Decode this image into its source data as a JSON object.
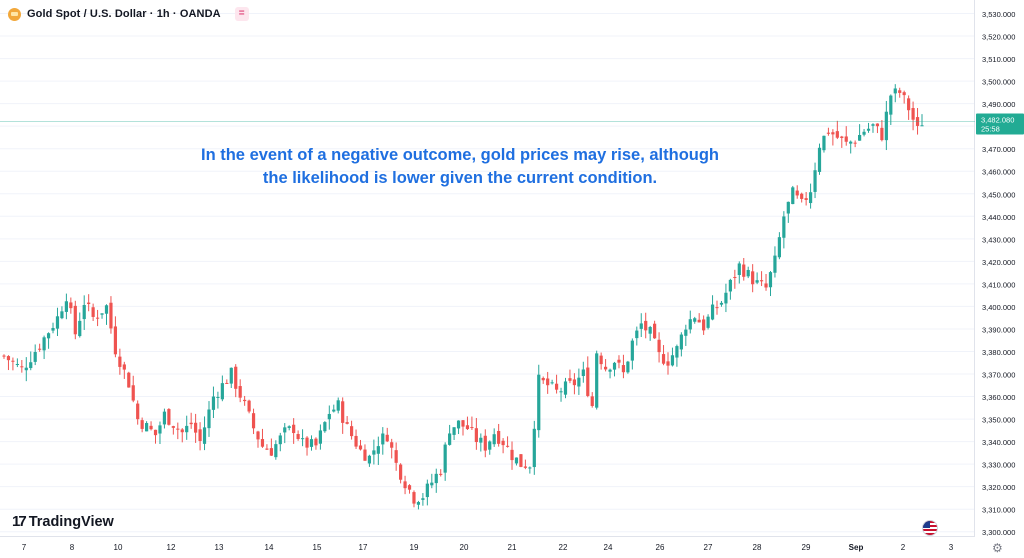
{
  "header": {
    "symbol_title": "Gold Spot / U.S. Dollar · 1h · OANDA",
    "flag_glyph": "="
  },
  "annotation": {
    "line1": "In the event of a negative outcome, gold prices may rise, although",
    "line2": "the likelihood is lower given the current condition."
  },
  "branding": {
    "logo_mark": "17",
    "logo_text": "TradingView"
  },
  "price_label": {
    "price": "3,482.080",
    "countdown": "25:58"
  },
  "colors": {
    "up": "#26a69a",
    "down": "#ef5350",
    "label_bg": "#22ab94",
    "axis_text": "#131722",
    "annotation": "#1f6fe0"
  },
  "chart_data": {
    "type": "candlestick",
    "title": "Gold Spot / U.S. Dollar · 1h · OANDA",
    "ylim": [
      3295,
      3532
    ],
    "y_ticks": [
      "3,530.000",
      "3,520.000",
      "3,510.000",
      "3,500.000",
      "3,490.000",
      "3,480.000",
      "3,470.000",
      "3,460.000",
      "3,450.000",
      "3,440.000",
      "3,430.000",
      "3,420.000",
      "3,410.000",
      "3,400.000",
      "3,390.000",
      "3,380.000",
      "3,370.000",
      "3,360.000",
      "3,350.000",
      "3,340.000",
      "3,330.000",
      "3,320.000",
      "3,310.000",
      "3,300.000"
    ],
    "x_ticks": [
      "7",
      "8",
      "10",
      "12",
      "13",
      "14",
      "15",
      "17",
      "19",
      "20",
      "21",
      "22",
      "24",
      "26",
      "27",
      "28",
      "29",
      "Sep",
      "2",
      "3"
    ],
    "last_price": 3482.08,
    "price_path": [
      [
        0,
        3378
      ],
      [
        4,
        3372
      ],
      [
        8,
        3383
      ],
      [
        12,
        3395
      ],
      [
        14,
        3405
      ],
      [
        16,
        3388
      ],
      [
        18,
        3402
      ],
      [
        20,
        3395
      ],
      [
        23,
        3400
      ],
      [
        25,
        3381
      ],
      [
        28,
        3366
      ],
      [
        30,
        3350
      ],
      [
        34,
        3343
      ],
      [
        36,
        3352
      ],
      [
        40,
        3344
      ],
      [
        42,
        3348
      ],
      [
        44,
        3340
      ],
      [
        47,
        3360
      ],
      [
        49,
        3365
      ],
      [
        51,
        3370
      ],
      [
        54,
        3356
      ],
      [
        56,
        3346
      ],
      [
        58,
        3338
      ],
      [
        60,
        3336
      ],
      [
        63,
        3344
      ],
      [
        65,
        3346
      ],
      [
        67,
        3339
      ],
      [
        70,
        3338
      ],
      [
        73,
        3353
      ],
      [
        75,
        3356
      ],
      [
        77,
        3346
      ],
      [
        80,
        3336
      ],
      [
        82,
        3333
      ],
      [
        84,
        3340
      ],
      [
        86,
        3343
      ],
      [
        88,
        3330
      ],
      [
        90,
        3322
      ],
      [
        92,
        3315
      ],
      [
        94,
        3316
      ],
      [
        96,
        3322
      ],
      [
        98,
        3328
      ],
      [
        100,
        3346
      ],
      [
        102,
        3348
      ],
      [
        104,
        3346
      ],
      [
        106,
        3341
      ],
      [
        108,
        3338
      ],
      [
        110,
        3344
      ],
      [
        112,
        3340
      ],
      [
        114,
        3334
      ],
      [
        116,
        3330
      ],
      [
        118,
        3330
      ],
      [
        120,
        3367
      ],
      [
        122,
        3365
      ],
      [
        124,
        3362
      ],
      [
        126,
        3364
      ],
      [
        128,
        3366
      ],
      [
        130,
        3370
      ],
      [
        132,
        3356
      ],
      [
        133,
        3380
      ],
      [
        135,
        3373
      ],
      [
        137,
        3376
      ],
      [
        139,
        3370
      ],
      [
        141,
        3384
      ],
      [
        143,
        3392
      ],
      [
        145,
        3388
      ],
      [
        147,
        3378
      ],
      [
        149,
        3376
      ],
      [
        151,
        3381
      ],
      [
        153,
        3392
      ],
      [
        155,
        3396
      ],
      [
        157,
        3391
      ],
      [
        159,
        3398
      ],
      [
        161,
        3402
      ],
      [
        163,
        3410
      ],
      [
        165,
        3418
      ],
      [
        167,
        3414
      ],
      [
        169,
        3410
      ],
      [
        171,
        3408
      ],
      [
        173,
        3420
      ],
      [
        175,
        3440
      ],
      [
        177,
        3450
      ],
      [
        179,
        3445
      ],
      [
        181,
        3452
      ],
      [
        183,
        3472
      ],
      [
        185,
        3478
      ],
      [
        187,
        3475
      ],
      [
        189,
        3472
      ],
      [
        191,
        3474
      ],
      [
        193,
        3478
      ],
      [
        195,
        3480
      ],
      [
        197,
        3476
      ],
      [
        199,
        3494
      ],
      [
        201,
        3495
      ],
      [
        203,
        3488
      ],
      [
        205,
        3478
      ],
      [
        206,
        3482
      ]
    ]
  }
}
